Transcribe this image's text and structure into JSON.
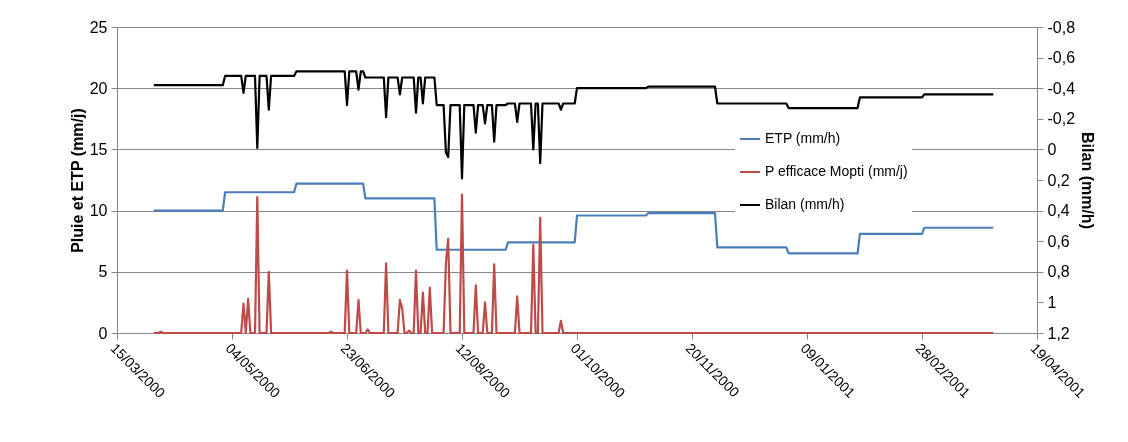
{
  "chart_data": {
    "type": "line",
    "xlabel": null,
    "ylabel": "Pluie et ETP (mm/j)",
    "y2label": "Bilan (mm/h)",
    "xlim": [
      "2000-03-15",
      "2001-04-19"
    ],
    "xticks": [
      {
        "value": "2000-03-15",
        "label": "15/03/2000"
      },
      {
        "value": "2000-05-04",
        "label": "04/05/2000"
      },
      {
        "value": "2000-06-23",
        "label": "23/06/2000"
      },
      {
        "value": "2000-08-12",
        "label": "12/08/2000"
      },
      {
        "value": "2000-10-01",
        "label": "01/10/2000"
      },
      {
        "value": "2000-11-20",
        "label": "20/11/2000"
      },
      {
        "value": "2001-01-09",
        "label": "09/01/2001"
      },
      {
        "value": "2001-02-28",
        "label": "28/02/2001"
      },
      {
        "value": "2001-04-19",
        "label": "19/04/2001"
      }
    ],
    "ylim": [
      0,
      25
    ],
    "yticks": [
      0,
      5,
      10,
      15,
      20,
      25
    ],
    "y2lim": [
      1.2,
      -0.8
    ],
    "y2ticks": [
      {
        "value": -0.8,
        "label": "-0,8"
      },
      {
        "value": -0.6,
        "label": "-0,6"
      },
      {
        "value": -0.4,
        "label": "-0,4"
      },
      {
        "value": -0.2,
        "label": "-0,2"
      },
      0,
      {
        "value": 0.2,
        "label": "0,2"
      },
      {
        "value": 0.4,
        "label": "0,4"
      },
      {
        "value": 0.6,
        "label": "0,6"
      },
      {
        "value": 0.8,
        "label": "0,8"
      },
      1,
      {
        "value": 1.2,
        "label": "1,2"
      }
    ],
    "grid": "y",
    "legend": "right",
    "line_style": "solid",
    "marker": "none",
    "series": [
      {
        "name": "ETP (mm/h)",
        "color": "#4a7ebb",
        "x": [
          "2000-03-31",
          "2000-04-30",
          "2000-05-01",
          "2000-05-31",
          "2000-06-01",
          "2000-06-30",
          "2000-07-01",
          "2000-07-31",
          "2000-08-01",
          "2000-08-31",
          "2000-09-01",
          "2000-09-30",
          "2000-10-01",
          "2000-10-31",
          "2000-11-01",
          "2000-11-30",
          "2000-12-01",
          "2000-12-31",
          "2001-01-01",
          "2001-01-31",
          "2001-02-01",
          "2001-02-28",
          "2001-03-01",
          "2001-03-31"
        ],
        "values": [
          10,
          10,
          11.5,
          11.5,
          12.2,
          12.2,
          11.0,
          11.0,
          6.8,
          6.8,
          7.4,
          7.4,
          9.6,
          9.6,
          9.8,
          9.8,
          7.0,
          7.0,
          6.5,
          6.5,
          8.1,
          8.1,
          8.6,
          8.6
        ]
      },
      {
        "name": "P efficace Mopti (mm/j)",
        "color": "#be4b48",
        "x": [
          "2000-03-31",
          "2000-04-02",
          "2000-04-03",
          "2000-04-04",
          "2000-05-08",
          "2000-05-09",
          "2000-05-10",
          "2000-05-11",
          "2000-05-12",
          "2000-05-14",
          "2000-05-15",
          "2000-05-16",
          "2000-05-19",
          "2000-05-20",
          "2000-05-21",
          "2000-06-15",
          "2000-06-16",
          "2000-06-17",
          "2000-06-22",
          "2000-06-23",
          "2000-06-24",
          "2000-06-27",
          "2000-06-28",
          "2000-06-29",
          "2000-07-01",
          "2000-07-02",
          "2000-07-03",
          "2000-07-09",
          "2000-07-10",
          "2000-07-11",
          "2000-07-15",
          "2000-07-16",
          "2000-07-17",
          "2000-07-18",
          "2000-07-19",
          "2000-07-20",
          "2000-07-21",
          "2000-07-22",
          "2000-07-23",
          "2000-07-24",
          "2000-07-25",
          "2000-07-26",
          "2000-07-27",
          "2000-07-28",
          "2000-07-29",
          "2000-07-30",
          "2000-08-04",
          "2000-08-05",
          "2000-08-06",
          "2000-08-07",
          "2000-08-11",
          "2000-08-12",
          "2000-08-13",
          "2000-08-17",
          "2000-08-18",
          "2000-08-19",
          "2000-08-21",
          "2000-08-22",
          "2000-08-23",
          "2000-08-25",
          "2000-08-26",
          "2000-08-27",
          "2000-09-04",
          "2000-09-05",
          "2000-09-06",
          "2000-09-11",
          "2000-09-12",
          "2000-09-13",
          "2000-09-14",
          "2000-09-15",
          "2000-09-16",
          "2000-09-23",
          "2000-09-24",
          "2000-09-25",
          "2001-03-31"
        ],
        "values": [
          0,
          0,
          0.1,
          0,
          0,
          2.4,
          0,
          2.8,
          0,
          0,
          11.1,
          0,
          0,
          5.0,
          0,
          0,
          0.1,
          0,
          0,
          5.1,
          0,
          0,
          2.7,
          0,
          0,
          0.3,
          0,
          0,
          5.7,
          0,
          0,
          2.7,
          2.0,
          0,
          0,
          0.2,
          0,
          0,
          5.1,
          0,
          0,
          3.3,
          0,
          0,
          3.7,
          0,
          0,
          5.7,
          7.7,
          0,
          0,
          11.3,
          0,
          0,
          3.9,
          0,
          0,
          2.5,
          0,
          0,
          5.6,
          0,
          0,
          3.0,
          0,
          0,
          7.2,
          0,
          0,
          9.4,
          0,
          0,
          1.0,
          0,
          0
        ]
      },
      {
        "name": "Bilan (mm/h)",
        "color": "#000000",
        "axis": "y2",
        "x": [
          "2000-03-31",
          "2000-04-30",
          "2000-05-01",
          "2000-05-08",
          "2000-05-09",
          "2000-05-10",
          "2000-05-14",
          "2000-05-15",
          "2000-05-16",
          "2000-05-19",
          "2000-05-20",
          "2000-05-21",
          "2000-05-31",
          "2000-06-01",
          "2000-06-22",
          "2000-06-23",
          "2000-06-24",
          "2000-06-27",
          "2000-06-28",
          "2000-06-29",
          "2000-06-30",
          "2000-07-01",
          "2000-07-09",
          "2000-07-10",
          "2000-07-11",
          "2000-07-15",
          "2000-07-16",
          "2000-07-17",
          "2000-07-22",
          "2000-07-23",
          "2000-07-24",
          "2000-07-25",
          "2000-07-26",
          "2000-07-27",
          "2000-07-31",
          "2000-08-01",
          "2000-08-04",
          "2000-08-05",
          "2000-08-06",
          "2000-08-07",
          "2000-08-11",
          "2000-08-12",
          "2000-08-13",
          "2000-08-17",
          "2000-08-18",
          "2000-08-19",
          "2000-08-21",
          "2000-08-22",
          "2000-08-23",
          "2000-08-25",
          "2000-08-26",
          "2000-08-27",
          "2000-08-31",
          "2000-09-01",
          "2000-09-04",
          "2000-09-05",
          "2000-09-06",
          "2000-09-11",
          "2000-09-12",
          "2000-09-13",
          "2000-09-14",
          "2000-09-15",
          "2000-09-16",
          "2000-09-23",
          "2000-09-24",
          "2000-09-25",
          "2000-09-30",
          "2000-10-01",
          "2000-10-31",
          "2000-11-01",
          "2000-11-30",
          "2000-12-01",
          "2000-12-31",
          "2001-01-01",
          "2001-01-31",
          "2001-02-01",
          "2001-02-28",
          "2001-03-01",
          "2001-03-31"
        ],
        "values": [
          -0.42,
          -0.42,
          -0.48,
          -0.48,
          -0.37,
          -0.48,
          -0.48,
          -0.01,
          -0.48,
          -0.48,
          -0.26,
          -0.48,
          -0.48,
          -0.51,
          -0.51,
          -0.29,
          -0.51,
          -0.51,
          -0.39,
          -0.51,
          -0.51,
          -0.47,
          -0.47,
          -0.21,
          -0.47,
          -0.47,
          -0.36,
          -0.47,
          -0.47,
          -0.24,
          -0.47,
          -0.47,
          -0.3,
          -0.47,
          -0.47,
          -0.29,
          -0.29,
          0.02,
          0.05,
          -0.29,
          -0.29,
          0.19,
          -0.29,
          -0.29,
          -0.11,
          -0.29,
          -0.29,
          -0.17,
          -0.29,
          -0.29,
          -0.05,
          -0.29,
          -0.29,
          -0.3,
          -0.3,
          -0.18,
          -0.3,
          -0.3,
          0.0,
          -0.3,
          -0.3,
          0.09,
          -0.3,
          -0.3,
          -0.26,
          -0.3,
          -0.3,
          -0.4,
          -0.4,
          -0.41,
          -0.41,
          -0.3,
          -0.3,
          -0.27,
          -0.27,
          -0.34,
          -0.34,
          -0.36,
          -0.36
        ]
      }
    ]
  }
}
